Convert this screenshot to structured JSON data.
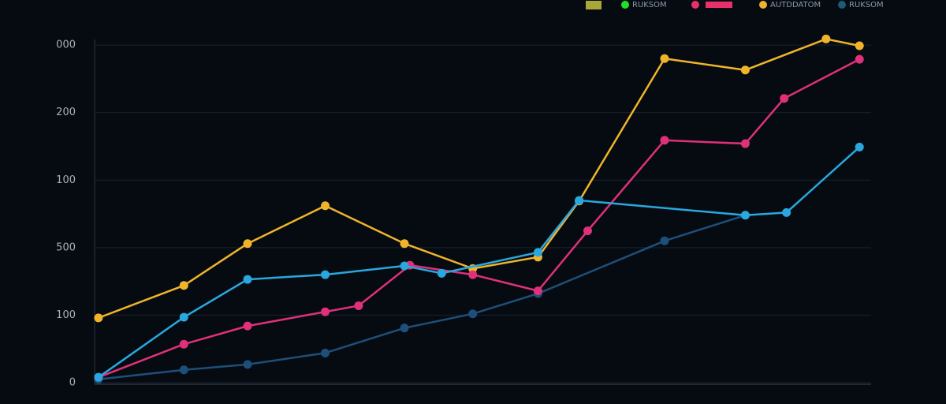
{
  "chart_data": {
    "type": "line",
    "xlim": [
      0,
      100
    ],
    "ylim": [
      0,
      520
    ],
    "yticks": [
      0,
      100,
      {
        "value": 200,
        "label": "500"
      },
      {
        "value": 300,
        "label": "100"
      },
      {
        "value": 400,
        "label": "200"
      },
      {
        "value": 500,
        "label": "000"
      }
    ],
    "grid": true,
    "legend": [
      {
        "color": "#a8a838"
      },
      {
        "color": "#22e022",
        "label": "RUKSOM"
      },
      {
        "color": "#e8306a"
      },
      {
        "color": "#f0b030",
        "label": "AUTDDATOM"
      },
      {
        "color": "#1c5a78",
        "label": "RUKSOM"
      }
    ],
    "series": [
      {
        "color": "#1d4f7a",
        "x": [
          0.5,
          11.5,
          19.7,
          29.7,
          39.9,
          48.7,
          57.1,
          73.4,
          83.8
        ],
        "values": [
          5,
          19,
          27,
          44,
          81,
          102,
          132,
          210,
          248
        ]
      },
      {
        "color": "#f0b429",
        "x": [
          0.5,
          11.5,
          19.7,
          29.7,
          39.9,
          48.7,
          57.1,
          62.4,
          73.4,
          83.8,
          94.2,
          98.5
        ],
        "values": [
          96,
          144,
          206,
          262,
          206,
          169,
          186,
          269,
          480,
          463,
          509,
          499
        ]
      },
      {
        "color": "#e0307a",
        "x": [
          0.5,
          11.5,
          19.7,
          29.7,
          34.0,
          40.6,
          48.7,
          57.1,
          63.5,
          73.4,
          83.8,
          88.8,
          98.5
        ],
        "values": [
          8,
          57,
          84,
          105,
          114,
          174,
          160,
          136,
          225,
          359,
          354,
          421,
          479
        ]
      },
      {
        "color": "#29a8e0",
        "x": [
          0.5,
          11.5,
          19.7,
          29.7,
          39.9,
          44.7,
          57.1,
          62.4,
          83.8,
          89.1,
          98.5
        ],
        "values": [
          8,
          97,
          153,
          160,
          173,
          162,
          193,
          270,
          248,
          252,
          349
        ]
      }
    ]
  }
}
